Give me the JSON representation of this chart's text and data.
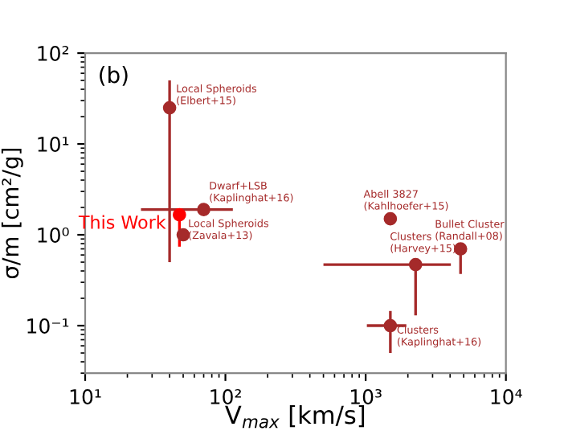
{
  "chart_data": {
    "type": "scatter",
    "xlabel": "V$_{max}$ [km/s]",
    "ylabel": "σ/m [cm²/g]",
    "xlim": [
      10,
      10000
    ],
    "ylim": [
      0.03,
      100
    ],
    "log": "xy",
    "marker": "circle",
    "grid": false,
    "legend": false,
    "xticks": [
      {
        "value": 10,
        "label": "10¹"
      },
      {
        "value": 100,
        "label": "10²"
      },
      {
        "value": 1000,
        "label": "10³"
      },
      {
        "value": 10000,
        "label": "10⁴"
      }
    ],
    "yticks": [
      {
        "value": 0.1,
        "label": "10⁻¹"
      },
      {
        "value": 1,
        "label": "10⁰"
      },
      {
        "value": 10,
        "label": "10¹"
      },
      {
        "value": 100,
        "label": "10²"
      }
    ],
    "series": [
      {
        "color": "#a52a2a",
        "x": [
          40,
          70,
          50,
          1500,
          4750,
          2270,
          1500
        ],
        "values": [
          25,
          1.9,
          1.0,
          1.5,
          0.7,
          0.47,
          0.1
        ],
        "errors": [
          [
            0.5,
            50
          ],
          null,
          null,
          null,
          [
            0.37,
            0.7
          ],
          [
            0.13,
            0.47
          ],
          [
            0.05,
            0.145
          ]
        ],
        "xerrors": [
          null,
          [
            25,
            113
          ],
          null,
          null,
          null,
          [
            500,
            4050
          ],
          [
            1020,
            1950
          ]
        ]
      },
      {
        "name": "This Work",
        "color": "#ff0000",
        "x": [
          47
        ],
        "values": [
          1.66
        ],
        "errors": [
          [
            0.74,
            1.66
          ]
        ]
      }
    ],
    "annotations": [
      "(b)",
      {
        "text": "Local Spheroids\n(Elbert+15)",
        "x": 40,
        "y": 25
      },
      {
        "text": "Dwarf+LSB\n(Kaplinghat+16)",
        "x": 70,
        "y": 1.9
      },
      {
        "text": "Local Spheroids\n(Zavala+13)",
        "x": 50,
        "y": 1.0
      },
      {
        "text": "Abell 3827\n(Kahlhoefer+15)",
        "x": 1500,
        "y": 1.5
      },
      {
        "text": "Bullet Cluster\n(Randall+08)",
        "x": 4750,
        "y": 0.7
      },
      {
        "text": "Clusters\n(Harvey+15)",
        "x": 2270,
        "y": 0.47
      },
      {
        "text": "Clusters\n(Kaplinghat+16)",
        "x": 1500,
        "y": 0.1
      }
    ]
  }
}
